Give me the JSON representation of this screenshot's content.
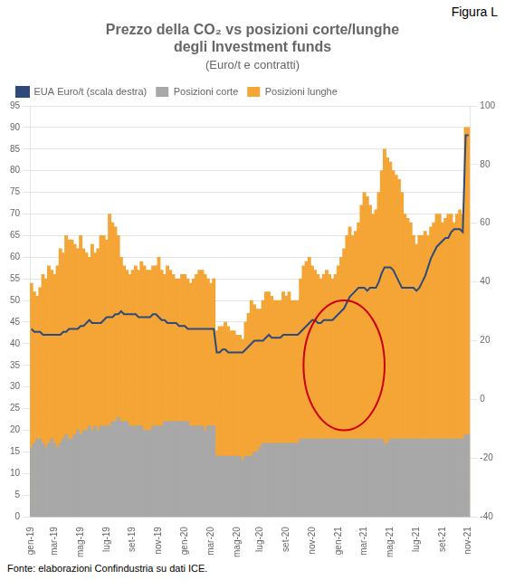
{
  "chart_data": {
    "type": "bar",
    "title": [
      "Prezzo della CO₂ vs posizioni corte/lunghe",
      "degli Investment funds"
    ],
    "subtitle": "(Euro/t e contratti)",
    "figure_label": "Figura L",
    "source": "Fonte: elaborazioni Confindustria su dati ICE.",
    "categories": [
      "gen-19",
      null,
      null,
      null,
      null,
      null,
      null,
      null,
      "mar-19",
      null,
      null,
      null,
      null,
      null,
      null,
      null,
      null,
      "mag-19",
      null,
      null,
      null,
      null,
      null,
      null,
      null,
      null,
      "lug-19",
      null,
      null,
      null,
      null,
      null,
      null,
      null,
      null,
      "set-19",
      null,
      null,
      null,
      null,
      null,
      null,
      null,
      null,
      "nov-19",
      null,
      null,
      null,
      null,
      null,
      null,
      null,
      null,
      "gen-20",
      null,
      null,
      null,
      null,
      null,
      null,
      null,
      null,
      "mar-20",
      null,
      null,
      null,
      null,
      null,
      null,
      null,
      null,
      "mag-20",
      null,
      null,
      null,
      null,
      null,
      null,
      null,
      "lug-20",
      null,
      null,
      null,
      null,
      null,
      null,
      null,
      null,
      "set-20",
      null,
      null,
      null,
      null,
      null,
      null,
      null,
      null,
      "nov-20",
      null,
      null,
      null,
      null,
      null,
      null,
      null,
      null,
      "gen-21",
      null,
      null,
      null,
      null,
      null,
      null,
      null,
      null,
      "mar-21",
      null,
      null,
      null,
      null,
      null,
      null,
      null,
      null,
      "mag-21",
      null,
      null,
      null,
      null,
      null,
      null,
      null,
      null,
      "lug-21",
      null,
      null,
      null,
      null,
      null,
      null,
      null,
      null,
      "set-21",
      null,
      null,
      null,
      null,
      null,
      null,
      null,
      null,
      "nov-21"
    ],
    "series": [
      {
        "name": "Posizioni corte",
        "color": "#a8a8a8",
        "values": [
          16,
          17,
          18,
          18,
          17,
          16,
          17,
          18,
          17,
          16,
          17,
          18,
          19,
          18,
          18,
          19,
          20,
          19,
          20,
          20,
          21,
          20,
          21,
          20,
          21,
          21,
          21,
          21,
          22,
          22,
          23,
          22,
          22,
          22,
          21,
          21,
          21,
          21,
          21,
          20,
          20,
          20,
          21,
          21,
          21,
          21,
          22,
          22,
          22,
          22,
          22,
          22,
          22,
          22,
          22,
          21,
          21,
          21,
          21,
          21,
          20,
          21,
          21,
          21,
          14,
          14,
          14,
          14,
          14,
          14,
          14,
          14,
          14,
          13,
          14,
          14,
          14,
          15,
          15,
          16,
          17,
          17,
          17,
          17,
          17,
          17,
          17,
          17,
          17,
          17,
          17,
          17,
          17,
          18,
          18,
          18,
          18,
          18,
          18,
          18,
          18,
          18,
          18,
          18,
          18,
          18,
          18,
          18,
          18,
          18,
          18,
          18,
          18,
          18,
          18,
          18,
          18,
          18,
          18,
          18,
          18,
          18,
          17,
          17,
          18,
          18,
          18,
          18,
          18,
          18,
          18,
          18,
          18,
          18,
          18,
          18,
          18,
          18,
          18,
          18,
          18,
          18,
          18,
          18,
          18,
          18,
          18,
          18,
          18,
          18,
          19,
          19
        ]
      },
      {
        "name": "Posizioni lunghe",
        "color": "#f4a535",
        "values": [
          54,
          52,
          51,
          53,
          56,
          55,
          58,
          57,
          56,
          58,
          62,
          61,
          65,
          64,
          64,
          63,
          62,
          65,
          62,
          61,
          60,
          63,
          61,
          62,
          65,
          65,
          64,
          70,
          68,
          67,
          65,
          60,
          58,
          57,
          56,
          57,
          58,
          57,
          59,
          58,
          57,
          57,
          58,
          58,
          60,
          57,
          56,
          58,
          57,
          56,
          55,
          55,
          56,
          56,
          55,
          54,
          55,
          56,
          57,
          57,
          56,
          55,
          54,
          55,
          43,
          44,
          44,
          45,
          44,
          43,
          43,
          42,
          42,
          41,
          45,
          47,
          50,
          49,
          48,
          48,
          50,
          52,
          52,
          51,
          50,
          50,
          50,
          52,
          51,
          52,
          50,
          50,
          50,
          55,
          58,
          59,
          60,
          58,
          57,
          56,
          55,
          56,
          57,
          56,
          55,
          56,
          58,
          60,
          62,
          65,
          67,
          65,
          66,
          68,
          72,
          75,
          74,
          72,
          70,
          71,
          75,
          80,
          85,
          83,
          82,
          80,
          79,
          78,
          75,
          70,
          69,
          68,
          65,
          63,
          65,
          65,
          66,
          65,
          67,
          68,
          70,
          70,
          68,
          69,
          70,
          70,
          68,
          70,
          71,
          70,
          90,
          90
        ]
      },
      {
        "name": "EUA Euro/t (scala destra)",
        "color": "#2d4a7a",
        "type": "line",
        "axis": "y2",
        "values": [
          24,
          23,
          23,
          23,
          22,
          22,
          22,
          22,
          22,
          22,
          22,
          23,
          23,
          24,
          24,
          24,
          24,
          25,
          25,
          26,
          27,
          26,
          26,
          26,
          26,
          27,
          28,
          28,
          28,
          29,
          29,
          30,
          29,
          29,
          29,
          29,
          29,
          28,
          28,
          28,
          28,
          28,
          29,
          29,
          28,
          27,
          27,
          26,
          26,
          26,
          26,
          25,
          25,
          25,
          24,
          24,
          24,
          24,
          24,
          24,
          24,
          24,
          24,
          24,
          16,
          16,
          17,
          17,
          16,
          16,
          16,
          16,
          16,
          16,
          17,
          18,
          19,
          20,
          20,
          20,
          20,
          21,
          22,
          21,
          21,
          21,
          21,
          22,
          22,
          22,
          22,
          22,
          22,
          23,
          24,
          25,
          26,
          27,
          27,
          26,
          26,
          27,
          27,
          27,
          27,
          28,
          29,
          30,
          31,
          33,
          35,
          36,
          37,
          38,
          38,
          38,
          37,
          38,
          38,
          38,
          40,
          43,
          45,
          45,
          45,
          44,
          42,
          40,
          38,
          38,
          38,
          38,
          38,
          37,
          38,
          40,
          42,
          45,
          48,
          50,
          52,
          53,
          54,
          55,
          55,
          57,
          58,
          58,
          58,
          57,
          90,
          90
        ]
      }
    ],
    "ylim": [
      0,
      95
    ],
    "yticks": [
      0,
      5,
      10,
      15,
      20,
      25,
      30,
      35,
      40,
      45,
      50,
      55,
      60,
      65,
      70,
      75,
      80,
      85,
      90,
      95
    ],
    "y2lim": [
      -40,
      100
    ],
    "y2ticks": [
      -40,
      -20,
      0,
      20,
      40,
      60,
      80,
      100
    ],
    "grid": true,
    "legend": "upper left",
    "annotations": [
      {
        "shape": "ellipse",
        "center": [
          108,
          35
        ],
        "width": 28,
        "height": 30,
        "color": "#cc0000"
      }
    ]
  }
}
